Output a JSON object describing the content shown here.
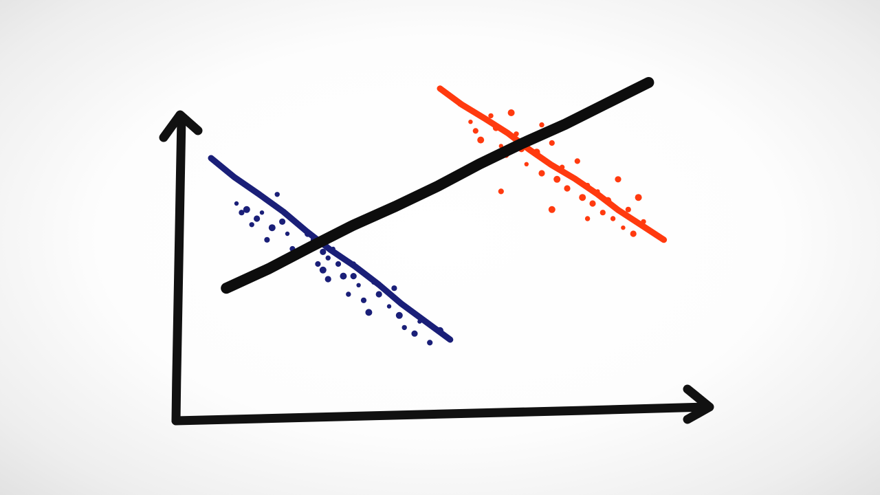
{
  "colors": {
    "axis": "#111111",
    "overall_trend": "#0d0d0d",
    "group_blue": "#1a1f78",
    "group_orange": "#ff3a0f"
  },
  "chart_data": {
    "type": "scatter",
    "title": "",
    "xlabel": "",
    "ylabel": "",
    "xlim": [
      0,
      100
    ],
    "ylim": [
      0,
      100
    ],
    "grid": false,
    "legend": "none",
    "overall_trend": {
      "from": [
        8,
        32
      ],
      "to": [
        91,
        100
      ]
    },
    "series": [
      {
        "color_key": "group_blue",
        "trend": {
          "from": [
            5,
            75
          ],
          "to": [
            52,
            15
          ]
        },
        "points": [
          [
            10,
            60
          ],
          [
            11,
            57
          ],
          [
            12,
            58
          ],
          [
            13,
            53
          ],
          [
            14,
            55
          ],
          [
            15,
            57
          ],
          [
            16,
            48
          ],
          [
            17,
            52
          ],
          [
            18,
            63
          ],
          [
            19,
            54
          ],
          [
            20,
            50
          ],
          [
            21,
            45
          ],
          [
            22,
            43
          ],
          [
            23,
            44
          ],
          [
            24,
            50
          ],
          [
            25,
            48
          ],
          [
            26,
            40
          ],
          [
            27,
            38
          ],
          [
            28,
            42
          ],
          [
            28,
            35
          ],
          [
            29,
            45
          ],
          [
            30,
            40
          ],
          [
            31,
            36
          ],
          [
            32,
            30
          ],
          [
            33,
            36
          ],
          [
            34,
            33
          ],
          [
            35,
            28
          ],
          [
            36,
            24
          ],
          [
            37,
            34
          ],
          [
            38,
            30
          ],
          [
            40,
            26
          ],
          [
            41,
            32
          ],
          [
            42,
            23
          ],
          [
            43,
            19
          ],
          [
            45,
            17
          ],
          [
            46,
            21
          ],
          [
            48,
            14
          ],
          [
            50,
            18
          ],
          [
            33,
            40
          ],
          [
            27,
            44
          ]
        ]
      },
      {
        "color_key": "group_orange",
        "trend": {
          "from": [
            50,
            98
          ],
          "to": [
            94,
            48
          ]
        },
        "points": [
          [
            54,
            93
          ],
          [
            56,
            87
          ],
          [
            57,
            84
          ],
          [
            58,
            81
          ],
          [
            60,
            89
          ],
          [
            61,
            85
          ],
          [
            62,
            79
          ],
          [
            63,
            76
          ],
          [
            64,
            90
          ],
          [
            65,
            83
          ],
          [
            66,
            78
          ],
          [
            67,
            73
          ],
          [
            68,
            82
          ],
          [
            69,
            77
          ],
          [
            70,
            86
          ],
          [
            70,
            70
          ],
          [
            71,
            74
          ],
          [
            72,
            80
          ],
          [
            73,
            68
          ],
          [
            74,
            72
          ],
          [
            75,
            65
          ],
          [
            76,
            69
          ],
          [
            77,
            74
          ],
          [
            78,
            62
          ],
          [
            79,
            66
          ],
          [
            80,
            60
          ],
          [
            81,
            64
          ],
          [
            82,
            57
          ],
          [
            83,
            61
          ],
          [
            84,
            55
          ],
          [
            85,
            68
          ],
          [
            86,
            52
          ],
          [
            87,
            58
          ],
          [
            89,
            62
          ],
          [
            90,
            54
          ],
          [
            88,
            50
          ],
          [
            55,
            71
          ],
          [
            62,
            64
          ],
          [
            72,
            58
          ],
          [
            79,
            55
          ]
        ]
      }
    ]
  }
}
